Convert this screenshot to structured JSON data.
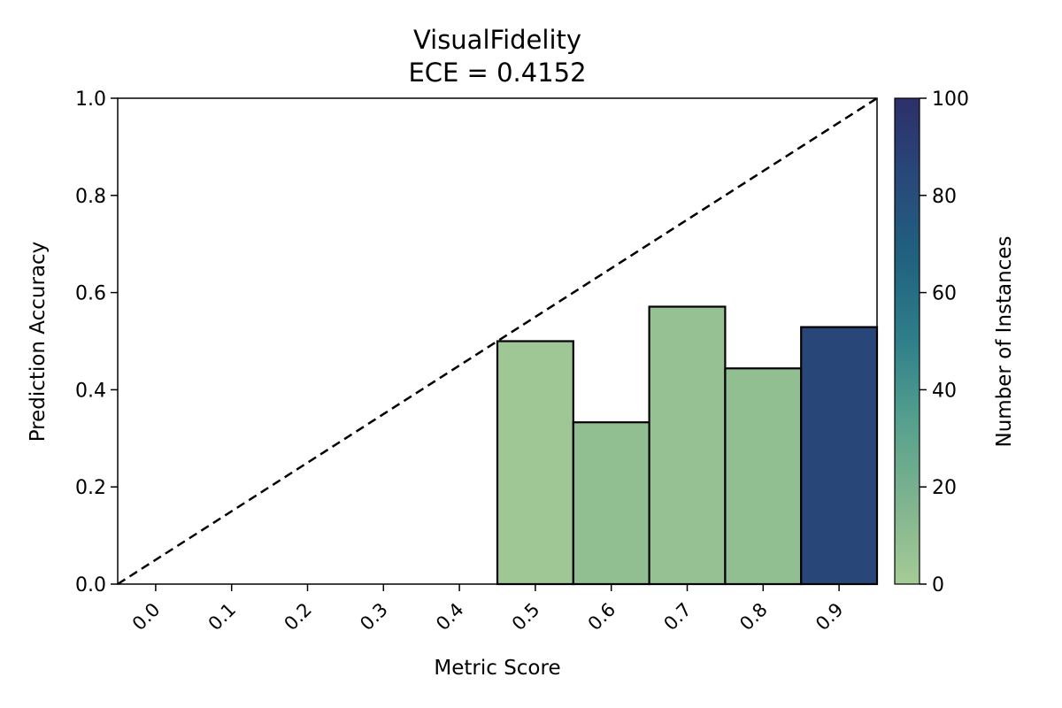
{
  "chart_data": {
    "type": "bar",
    "title": "VisualFidelity",
    "subtitle": "ECE = 0.4152",
    "xlabel": "Metric Score",
    "ylabel": "Prediction Accuracy",
    "x_ticks": [
      "0.0",
      "0.1",
      "0.2",
      "0.3",
      "0.4",
      "0.5",
      "0.6",
      "0.7",
      "0.8",
      "0.9"
    ],
    "y_ticks": [
      "0.0",
      "0.2",
      "0.4",
      "0.6",
      "0.8",
      "1.0"
    ],
    "xlim": [
      -0.05,
      0.95
    ],
    "ylim": [
      0,
      1
    ],
    "bin_width": 0.1,
    "bars": [
      {
        "x": 0.5,
        "accuracy": 0.5,
        "count": 3
      },
      {
        "x": 0.6,
        "accuracy": 0.333,
        "count": 9
      },
      {
        "x": 0.7,
        "accuracy": 0.571,
        "count": 7
      },
      {
        "x": 0.8,
        "accuracy": 0.444,
        "count": 9
      },
      {
        "x": 0.9,
        "accuracy": 0.529,
        "count": 85
      }
    ],
    "reference_line": {
      "style": "dashed",
      "from": [
        -0.05,
        0
      ],
      "to": [
        0.95,
        1
      ]
    },
    "colorbar": {
      "label": "Number of Instances",
      "range": [
        0,
        100
      ],
      "ticks": [
        "0",
        "20",
        "40",
        "60",
        "80",
        "100"
      ],
      "colormap": [
        "#a6cb96",
        "#7fb48f",
        "#56a08e",
        "#2f7f8a",
        "#21627f",
        "#28497a",
        "#2d2f69"
      ]
    },
    "grid": false
  }
}
